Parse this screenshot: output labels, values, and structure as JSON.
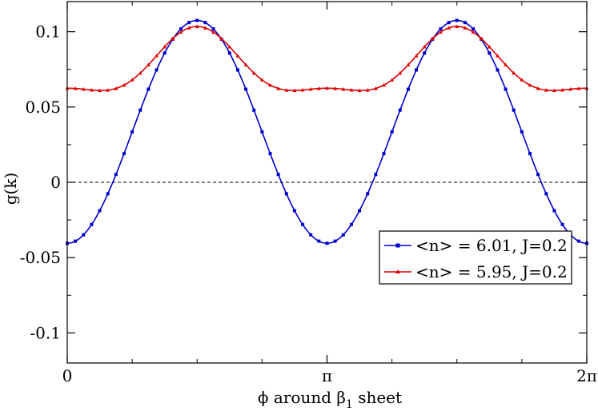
{
  "chart_data": {
    "type": "line",
    "title": "",
    "xlabel": "ϕ around β",
    "xlabel_subscript": "1",
    "xlabel_suffix": " sheet",
    "ylabel": "g(k)",
    "xlim": [
      0,
      6.283185
    ],
    "ylim": [
      -0.12,
      0.12
    ],
    "x_ticks": [
      {
        "value": 0,
        "label": "0"
      },
      {
        "value": 3.141593,
        "label": "π"
      },
      {
        "value": 6.283185,
        "label": "2π"
      }
    ],
    "y_ticks": [
      {
        "value": -0.1,
        "label": "-0.1"
      },
      {
        "value": -0.05,
        "label": "-0.05"
      },
      {
        "value": 0,
        "label": "0"
      },
      {
        "value": 0.05,
        "label": "0.05"
      },
      {
        "value": 0.1,
        "label": "0.1"
      }
    ],
    "y_minor_ticks": [
      -0.075,
      -0.025,
      0.025,
      0.075
    ],
    "zero_line": {
      "style": "dashed",
      "color": "#000000"
    },
    "grid": false,
    "legend_position": "center-right",
    "series": [
      {
        "name": "<n> = 6.01, J=0.2",
        "color": "#0000cc",
        "marker": "square",
        "num_points": 65,
        "model": {
          "a": 0.0335,
          "b": -0.074
        }
      },
      {
        "name": "<n> = 5.95, J=0.2",
        "color": "#dd0000",
        "marker": "triangle",
        "num_points": 65,
        "model": {
          "a": 0.0755,
          "b": -0.0205,
          "c": 0.0075
        }
      }
    ]
  }
}
